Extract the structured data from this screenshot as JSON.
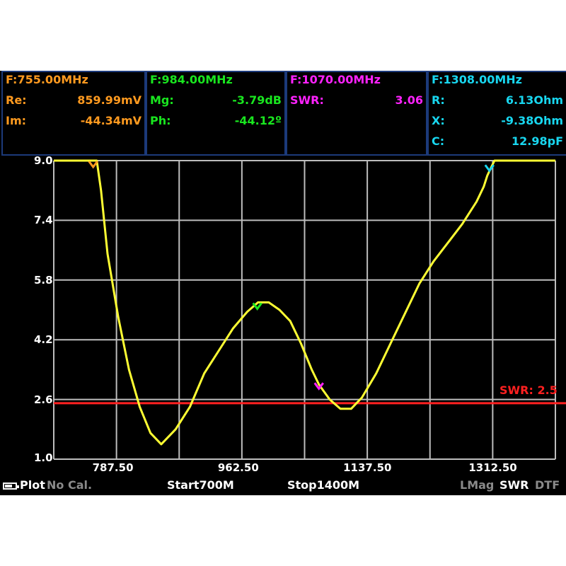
{
  "markers": [
    {
      "freq": "F:755.00MHz",
      "color": "#ff9a1f",
      "rows": [
        {
          "k": "Re:",
          "v": "859.99mV"
        },
        {
          "k": "Im:",
          "v": "-44.34mV"
        }
      ]
    },
    {
      "freq": "F:984.00MHz",
      "color": "#19e61f",
      "rows": [
        {
          "k": "Mg:",
          "v": "-3.79dB"
        },
        {
          "k": "Ph:",
          "v": "-44.12º"
        }
      ]
    },
    {
      "freq": "F:1070.00MHz",
      "color": "#ff22ff",
      "rows": [
        {
          "k": "SWR:",
          "v": "3.06"
        }
      ]
    },
    {
      "freq": "F:1308.00MHz",
      "color": "#18d7f0",
      "rows": [
        {
          "k": "R:",
          "v": "6.13Ohm"
        },
        {
          "k": "X:",
          "v": "-9.38Ohm"
        },
        {
          "k": "C:",
          "v": "12.98pF"
        }
      ]
    }
  ],
  "chart_data": {
    "type": "line",
    "xlim": [
      700,
      1400
    ],
    "ylim": [
      1.0,
      9.0
    ],
    "y_ticks": [
      "9.0",
      "7.4",
      "5.8",
      "4.2",
      "2.6",
      "1.0"
    ],
    "x_ticks": [
      "787.50",
      "962.50",
      "1137.50",
      "1312.50"
    ],
    "threshold": {
      "label": "SWR: 2.5",
      "value": 2.5,
      "color": "#ff2020"
    },
    "series": [
      {
        "color": "#ffff33",
        "x": [
          700,
          740,
          755,
          760,
          766,
          775,
          790,
          805,
          820,
          835,
          850,
          870,
          890,
          910,
          930,
          950,
          970,
          985,
          1000,
          1015,
          1030,
          1045,
          1060,
          1070,
          1085,
          1100,
          1115,
          1130,
          1150,
          1170,
          1190,
          1210,
          1230,
          1250,
          1270,
          1290,
          1300,
          1305,
          1310,
          1315,
          1320,
          1400
        ],
        "y": [
          9.0,
          9.0,
          9.0,
          9.0,
          8.2,
          6.5,
          4.8,
          3.4,
          2.4,
          1.7,
          1.4,
          1.8,
          2.4,
          3.3,
          3.9,
          4.5,
          4.95,
          5.2,
          5.2,
          5.0,
          4.7,
          4.1,
          3.4,
          3.0,
          2.6,
          2.35,
          2.35,
          2.65,
          3.3,
          4.1,
          4.9,
          5.7,
          6.3,
          6.8,
          7.3,
          7.9,
          8.3,
          8.6,
          8.8,
          9.0,
          9.0,
          9.0
        ]
      }
    ],
    "markers": [
      {
        "x": 755,
        "y": 9.0,
        "color": "#ff9a1f"
      },
      {
        "x": 984,
        "y": 5.2,
        "color": "#19e61f"
      },
      {
        "x": 1070,
        "y": 3.06,
        "color": "#ff22ff"
      },
      {
        "x": 1308,
        "y": 8.9,
        "color": "#18d7f0"
      }
    ]
  },
  "status": {
    "plot": "Plot",
    "cal": "No Cal.",
    "start": "Start700M",
    "stop": "Stop1400M",
    "lmag": "LMag",
    "swr": "SWR",
    "dtf": "DTF",
    "battery_level": 0.7
  }
}
